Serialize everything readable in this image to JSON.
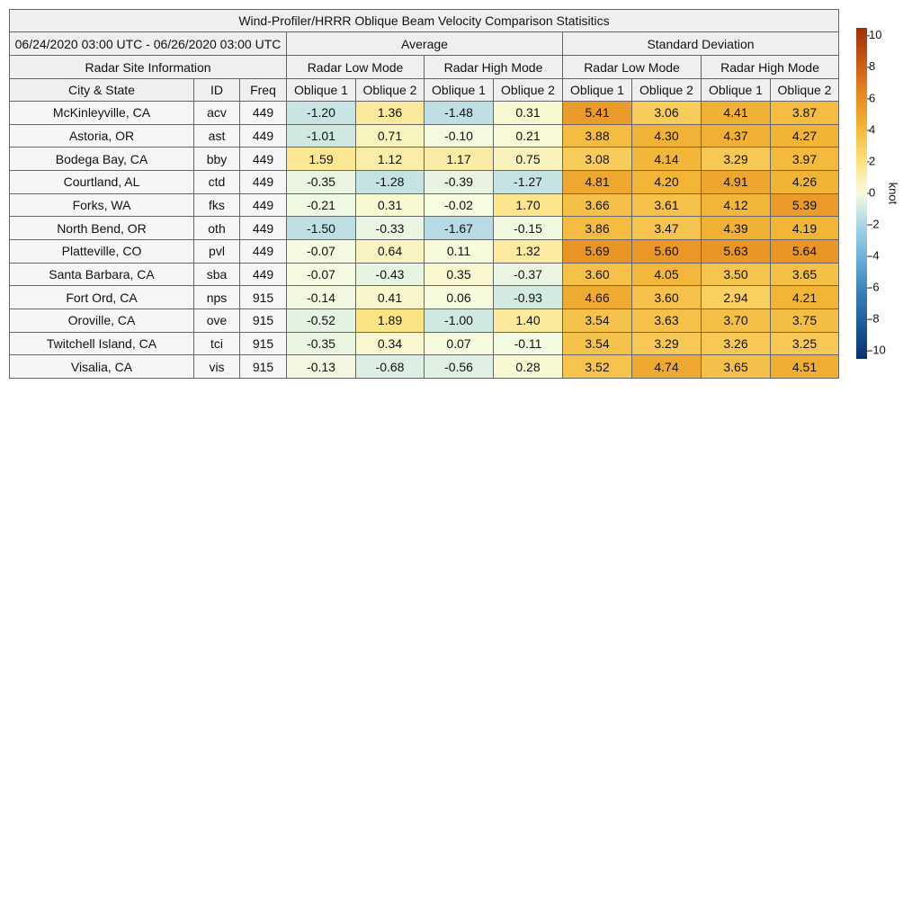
{
  "title": "Wind-Profiler/HRRR Oblique Beam Velocity Comparison Statisitics",
  "period": "06/24/2020 03:00 UTC - 06/26/2020 03:00 UTC",
  "groups": [
    "Average",
    "Standard Deviation"
  ],
  "site_header": "Radar Site Information",
  "modes": [
    "Radar Low Mode",
    "Radar High Mode",
    "Radar Low Mode",
    "Radar High Mode"
  ],
  "columns": [
    "City & State",
    "ID",
    "Freq",
    "Oblique 1",
    "Oblique 2",
    "Oblique 1",
    "Oblique 2",
    "Oblique 1",
    "Oblique 2",
    "Oblique 1",
    "Oblique 2"
  ],
  "rows": [
    [
      "McKinleyville, CA",
      "acv",
      "449",
      "-1.20",
      "1.36",
      "-1.48",
      "0.31",
      "5.41",
      "3.06",
      "4.41",
      "3.87"
    ],
    [
      "Astoria, OR",
      "ast",
      "449",
      "-1.01",
      "0.71",
      "-0.10",
      "0.21",
      "3.88",
      "4.30",
      "4.37",
      "4.27"
    ],
    [
      "Bodega Bay, CA",
      "bby",
      "449",
      "1.59",
      "1.12",
      "1.17",
      "0.75",
      "3.08",
      "4.14",
      "3.29",
      "3.97"
    ],
    [
      "Courtland, AL",
      "ctd",
      "449",
      "-0.35",
      "-1.28",
      "-0.39",
      "-1.27",
      "4.81",
      "4.20",
      "4.91",
      "4.26"
    ],
    [
      "Forks, WA",
      "fks",
      "449",
      "-0.21",
      "0.31",
      "-0.02",
      "1.70",
      "3.66",
      "3.61",
      "4.12",
      "5.39"
    ],
    [
      "North Bend, OR",
      "oth",
      "449",
      "-1.50",
      "-0.33",
      "-1.67",
      "-0.15",
      "3.86",
      "3.47",
      "4.39",
      "4.19"
    ],
    [
      "Platteville, CO",
      "pvl",
      "449",
      "-0.07",
      "0.64",
      "0.11",
      "1.32",
      "5.69",
      "5.60",
      "5.63",
      "5.64"
    ],
    [
      "Santa Barbara, CA",
      "sba",
      "449",
      "-0.07",
      "-0.43",
      "0.35",
      "-0.37",
      "3.60",
      "4.05",
      "3.50",
      "3.65"
    ],
    [
      "Fort Ord, CA",
      "nps",
      "915",
      "-0.14",
      "0.41",
      "0.06",
      "-0.93",
      "4.66",
      "3.60",
      "2.94",
      "4.21"
    ],
    [
      "Oroville, CA",
      "ove",
      "915",
      "-0.52",
      "1.89",
      "-1.00",
      "1.40",
      "3.54",
      "3.63",
      "3.70",
      "3.75"
    ],
    [
      "Twitchell Island, CA",
      "tci",
      "915",
      "-0.35",
      "0.34",
      "0.07",
      "-0.11",
      "3.54",
      "3.29",
      "3.26",
      "3.25"
    ],
    [
      "Visalia, CA",
      "vis",
      "915",
      "-0.13",
      "-0.68",
      "-0.56",
      "0.28",
      "3.52",
      "4.74",
      "3.65",
      "4.51"
    ]
  ],
  "colorbar": {
    "label": "knot",
    "lim": [
      -10.5,
      10.5
    ],
    "ticks": [
      -10,
      -8,
      -6,
      -4,
      -2,
      0,
      2,
      4,
      6,
      8,
      10
    ],
    "colors": [
      "#08306b",
      "#1c5a99",
      "#3a7fb8",
      "#6aaed6",
      "#a6d3e5",
      "#f7fce0",
      "#fde07a",
      "#f2b536",
      "#e6881f",
      "#c95716",
      "#9c3208"
    ]
  }
}
